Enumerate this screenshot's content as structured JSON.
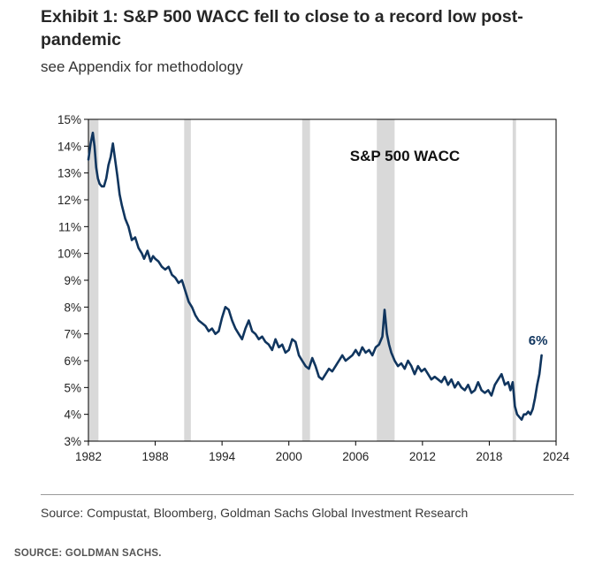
{
  "header": {
    "title": "Exhibit 1: S&P 500 WACC fell to close to a record low post-pandemic",
    "subtitle": "see Appendix for methodology"
  },
  "footer": {
    "source": "Source: Compustat, Bloomberg, Goldman Sachs Global Investment Research",
    "credit": "SOURCE: GOLDMAN SACHS."
  },
  "colors": {
    "line": "#10355e",
    "recession": "#d9d9d9",
    "axis": "#000000"
  },
  "chart_data": {
    "type": "line",
    "title": "S&P 500 WACC",
    "series_name": "S&P 500 WACC",
    "end_label": "6%",
    "xlim": [
      1982,
      2024
    ],
    "ylim": [
      3,
      15
    ],
    "x_ticks": [
      1982,
      1988,
      1994,
      2000,
      2006,
      2012,
      2018,
      2024
    ],
    "x_tick_labels": [
      "1982",
      "1988",
      "1994",
      "2000",
      "2006",
      "2012",
      "2018",
      "2024"
    ],
    "y_ticks": [
      3,
      4,
      5,
      6,
      7,
      8,
      9,
      10,
      11,
      12,
      13,
      14,
      15
    ],
    "y_tick_labels": [
      "3%",
      "4%",
      "5%",
      "6%",
      "7%",
      "8%",
      "9%",
      "10%",
      "11%",
      "12%",
      "13%",
      "14%",
      "15%"
    ],
    "recessions": [
      [
        1981.6,
        1982.9
      ],
      [
        1990.6,
        1991.2
      ],
      [
        2001.2,
        2001.9
      ],
      [
        2007.9,
        2009.5
      ],
      [
        2020.1,
        2020.4
      ]
    ],
    "x": [
      1982.0,
      1982.2,
      1982.4,
      1982.55,
      1982.7,
      1982.85,
      1983.0,
      1983.2,
      1983.4,
      1983.6,
      1983.8,
      1984.0,
      1984.2,
      1984.4,
      1984.6,
      1984.8,
      1985.0,
      1985.3,
      1985.6,
      1985.9,
      1986.2,
      1986.5,
      1986.8,
      1987.0,
      1987.3,
      1987.6,
      1987.8,
      1988.0,
      1988.3,
      1988.6,
      1988.9,
      1989.2,
      1989.5,
      1989.8,
      1990.1,
      1990.4,
      1990.7,
      1991.0,
      1991.3,
      1991.6,
      1991.9,
      1992.2,
      1992.5,
      1992.8,
      1993.1,
      1993.4,
      1993.7,
      1994.0,
      1994.3,
      1994.6,
      1994.9,
      1995.2,
      1995.5,
      1995.8,
      1996.1,
      1996.4,
      1996.7,
      1997.0,
      1997.3,
      1997.6,
      1997.9,
      1998.2,
      1998.5,
      1998.8,
      1999.1,
      1999.4,
      1999.7,
      2000.0,
      2000.3,
      2000.6,
      2000.9,
      2001.2,
      2001.5,
      2001.8,
      2002.1,
      2002.4,
      2002.7,
      2003.0,
      2003.3,
      2003.6,
      2003.9,
      2004.2,
      2004.5,
      2004.8,
      2005.1,
      2005.4,
      2005.7,
      2006.0,
      2006.3,
      2006.6,
      2006.9,
      2007.2,
      2007.5,
      2007.8,
      2008.1,
      2008.4,
      2008.6,
      2008.8,
      2009.0,
      2009.2,
      2009.5,
      2009.8,
      2010.1,
      2010.4,
      2010.7,
      2011.0,
      2011.3,
      2011.6,
      2011.9,
      2012.2,
      2012.5,
      2012.8,
      2013.1,
      2013.4,
      2013.7,
      2014.0,
      2014.3,
      2014.6,
      2014.9,
      2015.2,
      2015.5,
      2015.8,
      2016.1,
      2016.4,
      2016.7,
      2017.0,
      2017.3,
      2017.6,
      2017.9,
      2018.2,
      2018.5,
      2018.8,
      2019.1,
      2019.4,
      2019.7,
      2019.9,
      2020.1,
      2020.3,
      2020.5,
      2020.7,
      2020.9,
      2021.1,
      2021.3,
      2021.5,
      2021.7,
      2021.9,
      2022.1,
      2022.3,
      2022.5,
      2022.7
    ],
    "values": [
      13.5,
      14.1,
      14.5,
      14.0,
      13.2,
      12.8,
      12.6,
      12.5,
      12.5,
      12.8,
      13.3,
      13.6,
      14.1,
      13.5,
      12.9,
      12.2,
      11.8,
      11.3,
      11.0,
      10.5,
      10.6,
      10.2,
      10.0,
      9.8,
      10.1,
      9.7,
      9.9,
      9.8,
      9.7,
      9.5,
      9.4,
      9.5,
      9.2,
      9.1,
      8.9,
      9.0,
      8.6,
      8.2,
      8.0,
      7.7,
      7.5,
      7.4,
      7.3,
      7.1,
      7.2,
      7.0,
      7.1,
      7.6,
      8.0,
      7.9,
      7.5,
      7.2,
      7.0,
      6.8,
      7.2,
      7.5,
      7.1,
      7.0,
      6.8,
      6.9,
      6.7,
      6.6,
      6.4,
      6.8,
      6.5,
      6.6,
      6.3,
      6.4,
      6.8,
      6.7,
      6.2,
      6.0,
      5.8,
      5.7,
      6.1,
      5.8,
      5.4,
      5.3,
      5.5,
      5.7,
      5.6,
      5.8,
      6.0,
      6.2,
      6.0,
      6.1,
      6.2,
      6.4,
      6.2,
      6.5,
      6.3,
      6.4,
      6.2,
      6.5,
      6.6,
      6.9,
      7.9,
      7.0,
      6.6,
      6.3,
      6.0,
      5.8,
      5.9,
      5.7,
      6.0,
      5.8,
      5.5,
      5.8,
      5.6,
      5.7,
      5.5,
      5.3,
      5.4,
      5.3,
      5.2,
      5.4,
      5.1,
      5.3,
      5.0,
      5.2,
      5.0,
      4.9,
      5.1,
      4.8,
      4.9,
      5.2,
      4.9,
      4.8,
      4.9,
      4.7,
      5.1,
      5.3,
      5.5,
      5.1,
      5.2,
      4.9,
      5.2,
      4.3,
      4.0,
      3.9,
      3.8,
      4.0,
      4.0,
      4.1,
      4.0,
      4.2,
      4.6,
      5.1,
      5.5,
      6.2
    ]
  }
}
